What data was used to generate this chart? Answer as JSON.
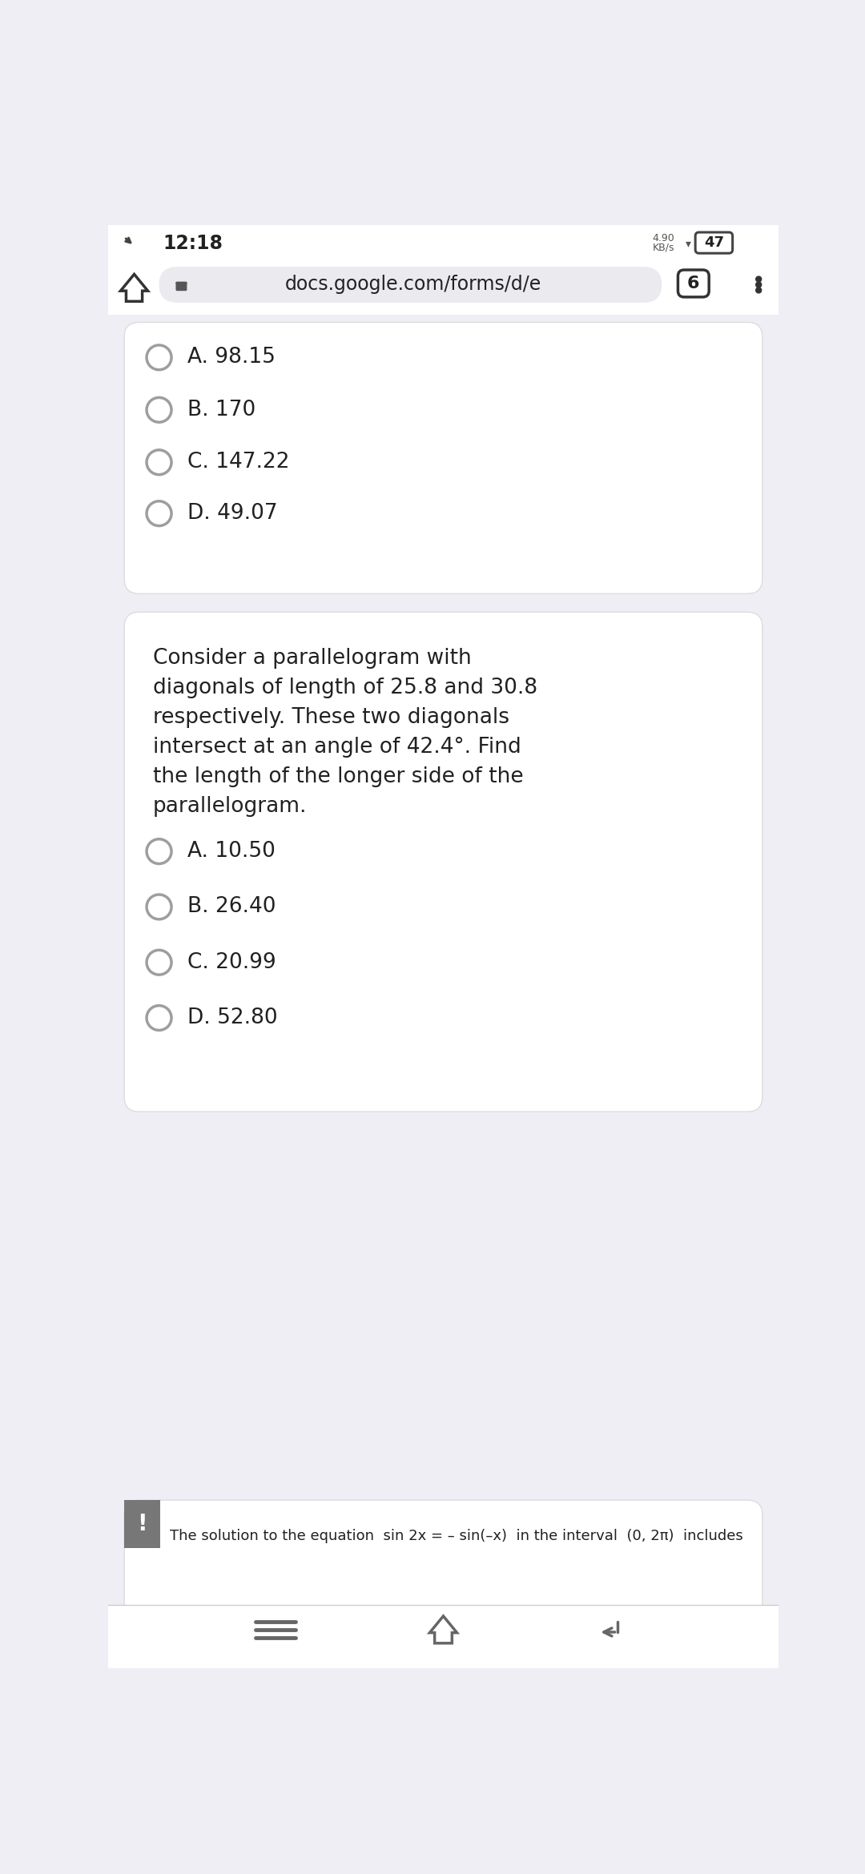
{
  "bg_color": "#eeeef4",
  "card_color": "#ffffff",
  "status_bar": {
    "time": "12:18",
    "battery": "47"
  },
  "browser_bar": {
    "url": "docs.google.com/forms/d/e",
    "tab_count": "6"
  },
  "card1": {
    "options": [
      "A. 98.15",
      "B. 170",
      "C. 147.22",
      "D. 49.07"
    ]
  },
  "card2": {
    "question": "Consider a parallelogram with\ndiagonals of length of 25.8 and 30.8\nrespectively. These two diagonals\nintersect at an angle of 42.4°. Find\nthe length of the longer side of the\nparallelogram.",
    "options": [
      "A. 10.50",
      "B. 26.40",
      "C. 20.99",
      "D. 52.80"
    ]
  },
  "card3": {
    "text": "The solution to the equation  sin 2x = – sin(–x)  in the interval  (0, 2π)  includes"
  },
  "font_size_option": 19,
  "font_size_question": 19,
  "text_color": "#212121",
  "radio_unselected_color": "#9e9e9e"
}
